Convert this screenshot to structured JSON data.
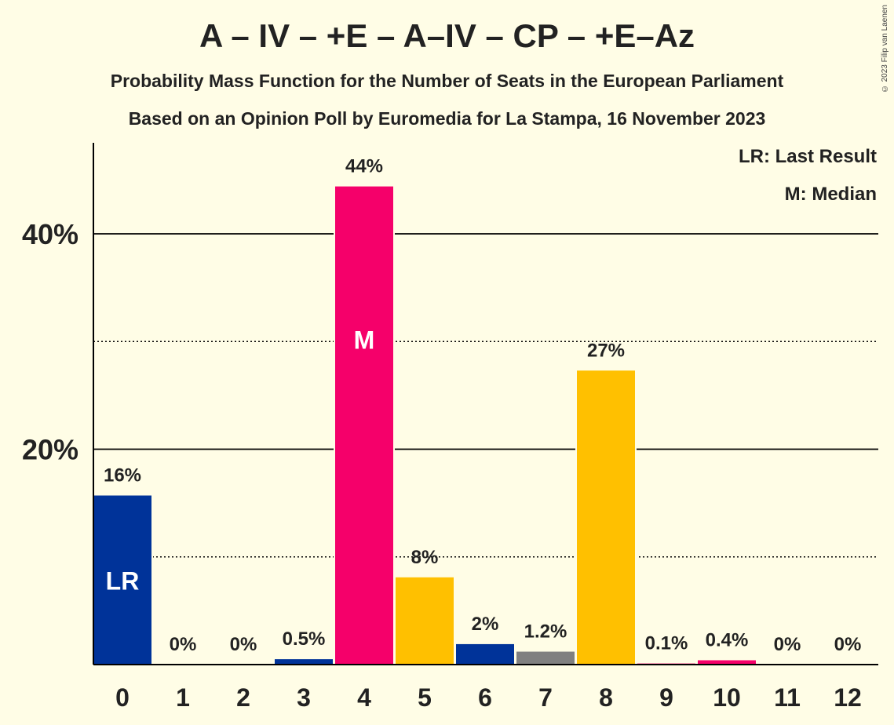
{
  "header": {
    "title": "A – IV – +E – A–IV – CP – +E–Az",
    "subtitle1": "Probability Mass Function for the Number of Seats in the European Parliament",
    "subtitle2": "Based on an Opinion Poll by Euromedia for La Stampa, 16 November 2023",
    "copyright": "© 2023 Filip van Laenen"
  },
  "legend": {
    "last_result": "LR: Last Result",
    "median": "M: Median"
  },
  "chart_data": {
    "type": "bar",
    "categories": [
      "0",
      "1",
      "2",
      "3",
      "4",
      "5",
      "6",
      "7",
      "8",
      "9",
      "10",
      "11",
      "12"
    ],
    "values": [
      15.7,
      0,
      0,
      0.5,
      44.4,
      8.1,
      1.9,
      1.2,
      27.3,
      0.1,
      0.4,
      0,
      0
    ],
    "data_labels": [
      "16%",
      "0%",
      "0%",
      "0.5%",
      "44%",
      "8%",
      "2%",
      "1.2%",
      "27%",
      "0.1%",
      "0.4%",
      "0%",
      "0%"
    ],
    "bar_colors": [
      "#003399",
      "#003399",
      "#003399",
      "#003399",
      "#F5006A",
      "#FFC000",
      "#003399",
      "#808080",
      "#FFC000",
      "#F5006A",
      "#F5006A",
      "#F5006A",
      "#F5006A"
    ],
    "bar_markers": {
      "0": "LR",
      "4": "M"
    },
    "ylim": [
      0,
      48
    ],
    "yticks": [
      20,
      40
    ],
    "ytick_labels": [
      "20%",
      "40%"
    ],
    "minor_gridlines": [
      10,
      30
    ],
    "legend_placement": "top-right",
    "xlabel": "",
    "ylabel": ""
  }
}
